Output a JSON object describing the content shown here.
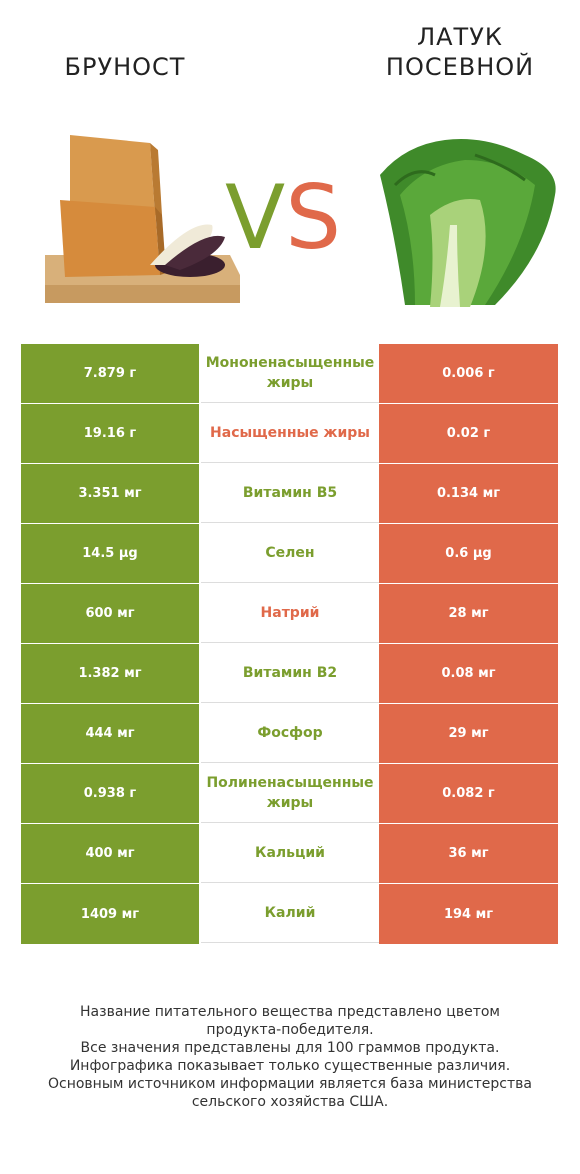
{
  "header": {
    "left_title": "БРУНОСТ",
    "right_title_line1": "ЛАТУК",
    "right_title_line2": "ПОСЕВНОЙ",
    "vs_v": "V",
    "vs_s": "S"
  },
  "colors": {
    "left": "#7b9e2e",
    "right": "#e0694a"
  },
  "rows": [
    {
      "left": "7.879 г",
      "label": "Мононенасыщенные жиры",
      "right": "0.006 г",
      "winner": "left"
    },
    {
      "left": "19.16 г",
      "label": "Насыщенные жиры",
      "right": "0.02 г",
      "winner": "right"
    },
    {
      "left": "3.351 мг",
      "label": "Витамин B5",
      "right": "0.134 мг",
      "winner": "left"
    },
    {
      "left": "14.5 µg",
      "label": "Селен",
      "right": "0.6 µg",
      "winner": "left"
    },
    {
      "left": "600 мг",
      "label": "Натрий",
      "right": "28 мг",
      "winner": "right"
    },
    {
      "left": "1.382 мг",
      "label": "Витамин B2",
      "right": "0.08 мг",
      "winner": "left"
    },
    {
      "left": "444 мг",
      "label": "Фосфор",
      "right": "29 мг",
      "winner": "left"
    },
    {
      "left": "0.938 г",
      "label": "Полиненасыщенные жиры",
      "right": "0.082 г",
      "winner": "left"
    },
    {
      "left": "400 мг",
      "label": "Кальций",
      "right": "36 мг",
      "winner": "left"
    },
    {
      "left": "1409 мг",
      "label": "Калий",
      "right": "194 мг",
      "winner": "left"
    }
  ],
  "footer": {
    "line1": "Название питательного вещества представлено цветом",
    "line2": "продукта-победителя.",
    "line3": "Все значения представлены для 100 граммов продукта.",
    "line4": "Инфографика показывает только существенные различия.",
    "line5": "Основным источником информации является база министерства",
    "line6": "сельского хозяйства США."
  }
}
